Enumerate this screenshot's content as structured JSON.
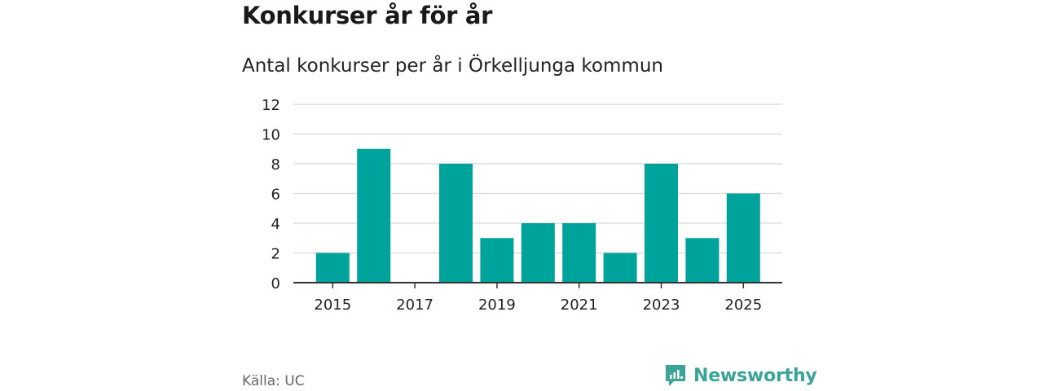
{
  "title": "Konkurser år för år",
  "subtitle": "Antal konkurser per år i Örkelljunga kommun",
  "source": "Källa: UC",
  "brand": {
    "name": "Newsworthy",
    "icon": "newsworthy-logo-icon",
    "color": "#3aa39a"
  },
  "chart_data": {
    "type": "bar",
    "categories": [
      "2015",
      "2016",
      "2017",
      "2018",
      "2019",
      "2020",
      "2021",
      "2022",
      "2023",
      "2024",
      "2025"
    ],
    "values": [
      2,
      9,
      0,
      8,
      3,
      4,
      4,
      2,
      8,
      3,
      6
    ],
    "x_tick_labels": [
      "2015",
      "2017",
      "2019",
      "2021",
      "2023",
      "2025"
    ],
    "y_ticks": [
      0,
      2,
      4,
      6,
      8,
      10,
      12
    ],
    "ylim": [
      0,
      12
    ],
    "grid": true,
    "bar_color": "#00a39b",
    "grid_color": "#dddddd",
    "axis_color": "#333333"
  }
}
